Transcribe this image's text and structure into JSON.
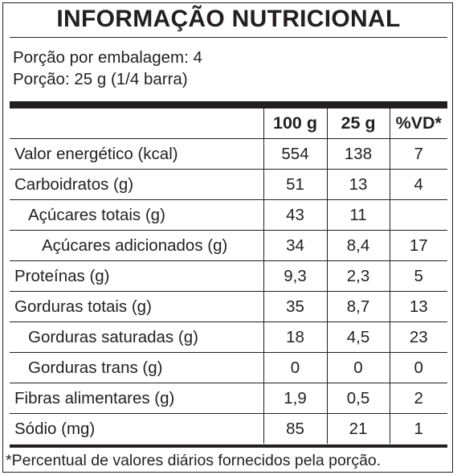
{
  "title": "INFORMAÇÃO NUTRICIONAL",
  "portions_per_package": "Porção por embalagem: 4",
  "portion_size": "Porção: 25 g (1/4 barra)",
  "table": {
    "headers": [
      "",
      "100 g",
      "25 g",
      "%VD*"
    ],
    "rows": [
      {
        "name": "Valor energético (kcal)",
        "indent": 0,
        "v100": "554",
        "v25": "138",
        "vd": "7"
      },
      {
        "name": "Carboidratos (g)",
        "indent": 0,
        "v100": "51",
        "v25": "13",
        "vd": "4"
      },
      {
        "name": "Açúcares totais (g)",
        "indent": 1,
        "v100": "43",
        "v25": "11",
        "vd": ""
      },
      {
        "name": "Açúcares adicionados (g)",
        "indent": 2,
        "v100": "34",
        "v25": "8,4",
        "vd": "17"
      },
      {
        "name": "Proteínas (g)",
        "indent": 0,
        "v100": "9,3",
        "v25": "2,3",
        "vd": "5"
      },
      {
        "name": "Gorduras totais (g)",
        "indent": 0,
        "v100": "35",
        "v25": "8,7",
        "vd": "13"
      },
      {
        "name": "Gorduras saturadas (g)",
        "indent": 1,
        "v100": "18",
        "v25": "4,5",
        "vd": "23"
      },
      {
        "name": "Gorduras trans (g)",
        "indent": 1,
        "v100": "0",
        "v25": "0",
        "vd": "0"
      },
      {
        "name": "Fibras alimentares (g)",
        "indent": 0,
        "v100": "1,9",
        "v25": "0,5",
        "vd": "2"
      },
      {
        "name": "Sódio (mg)",
        "indent": 0,
        "v100": "85",
        "v25": "21",
        "vd": "1"
      }
    ]
  },
  "footnote": "*Percentual de valores diários fornecidos pela porção."
}
